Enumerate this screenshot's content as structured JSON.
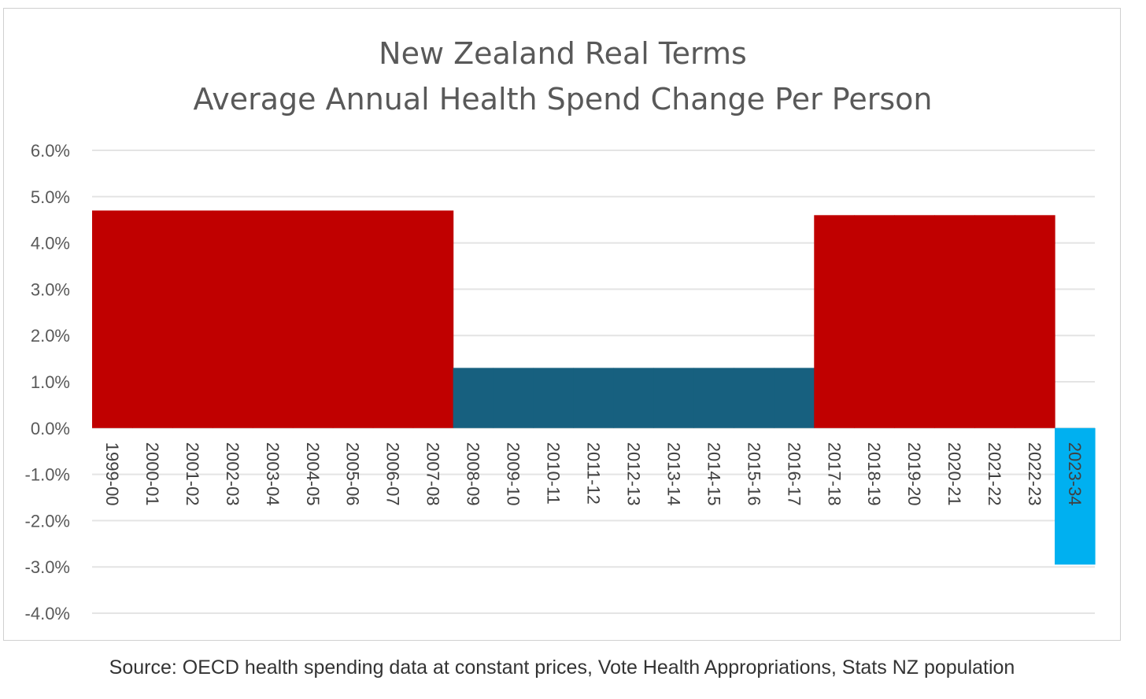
{
  "chart_data": {
    "type": "bar",
    "title": [
      "New Zealand Real Terms",
      "Average Annual Health Spend Change Per Person"
    ],
    "xlabel": "",
    "ylabel": "",
    "ylim": [
      -4.0,
      6.0
    ],
    "yticks": [
      6.0,
      5.0,
      4.0,
      3.0,
      2.0,
      1.0,
      0.0,
      -1.0,
      -2.0,
      -3.0,
      -4.0
    ],
    "ytick_labels": [
      "6.0%",
      "5.0%",
      "4.0%",
      "3.0%",
      "2.0%",
      "1.0%",
      "0.0%",
      "-1.0%",
      "-2.0%",
      "-3.0%",
      "-4.0%"
    ],
    "grid": true,
    "legend": "none",
    "categories": [
      "1999-00",
      "2000-01",
      "2001-02",
      "2002-03",
      "2003-04",
      "2004-05",
      "2005-06",
      "2006-07",
      "2007-08",
      "2008-09",
      "2009-10",
      "2010-11",
      "2011-12",
      "2012-13",
      "2013-14",
      "2014-15",
      "2015-16",
      "2016-17",
      "2017-18",
      "2018-19",
      "2019-20",
      "2020-21",
      "2021-22",
      "2022-23",
      "2023-34"
    ],
    "values": [
      4.7,
      4.7,
      4.7,
      4.7,
      4.7,
      4.7,
      4.7,
      4.7,
      4.7,
      1.3,
      1.3,
      1.3,
      1.3,
      1.3,
      1.3,
      1.3,
      1.3,
      1.3,
      4.6,
      4.6,
      4.6,
      4.6,
      4.6,
      4.6,
      -2.95
    ],
    "segments": [
      {
        "name": "1999-00 to 2007-08",
        "start": 0,
        "end": 8,
        "value": 4.7,
        "color": "#c00000"
      },
      {
        "name": "2008-09 to 2016-17",
        "start": 9,
        "end": 17,
        "value": 1.3,
        "color": "#17607f"
      },
      {
        "name": "2017-18 to 2022-23",
        "start": 18,
        "end": 23,
        "value": 4.6,
        "color": "#c00000"
      },
      {
        "name": "2023-34",
        "start": 24,
        "end": 24,
        "value": -2.95,
        "color": "#00b0f0"
      }
    ]
  },
  "source": "Source: OECD health spending data at constant prices, Vote Health Appropriations, Stats NZ population"
}
